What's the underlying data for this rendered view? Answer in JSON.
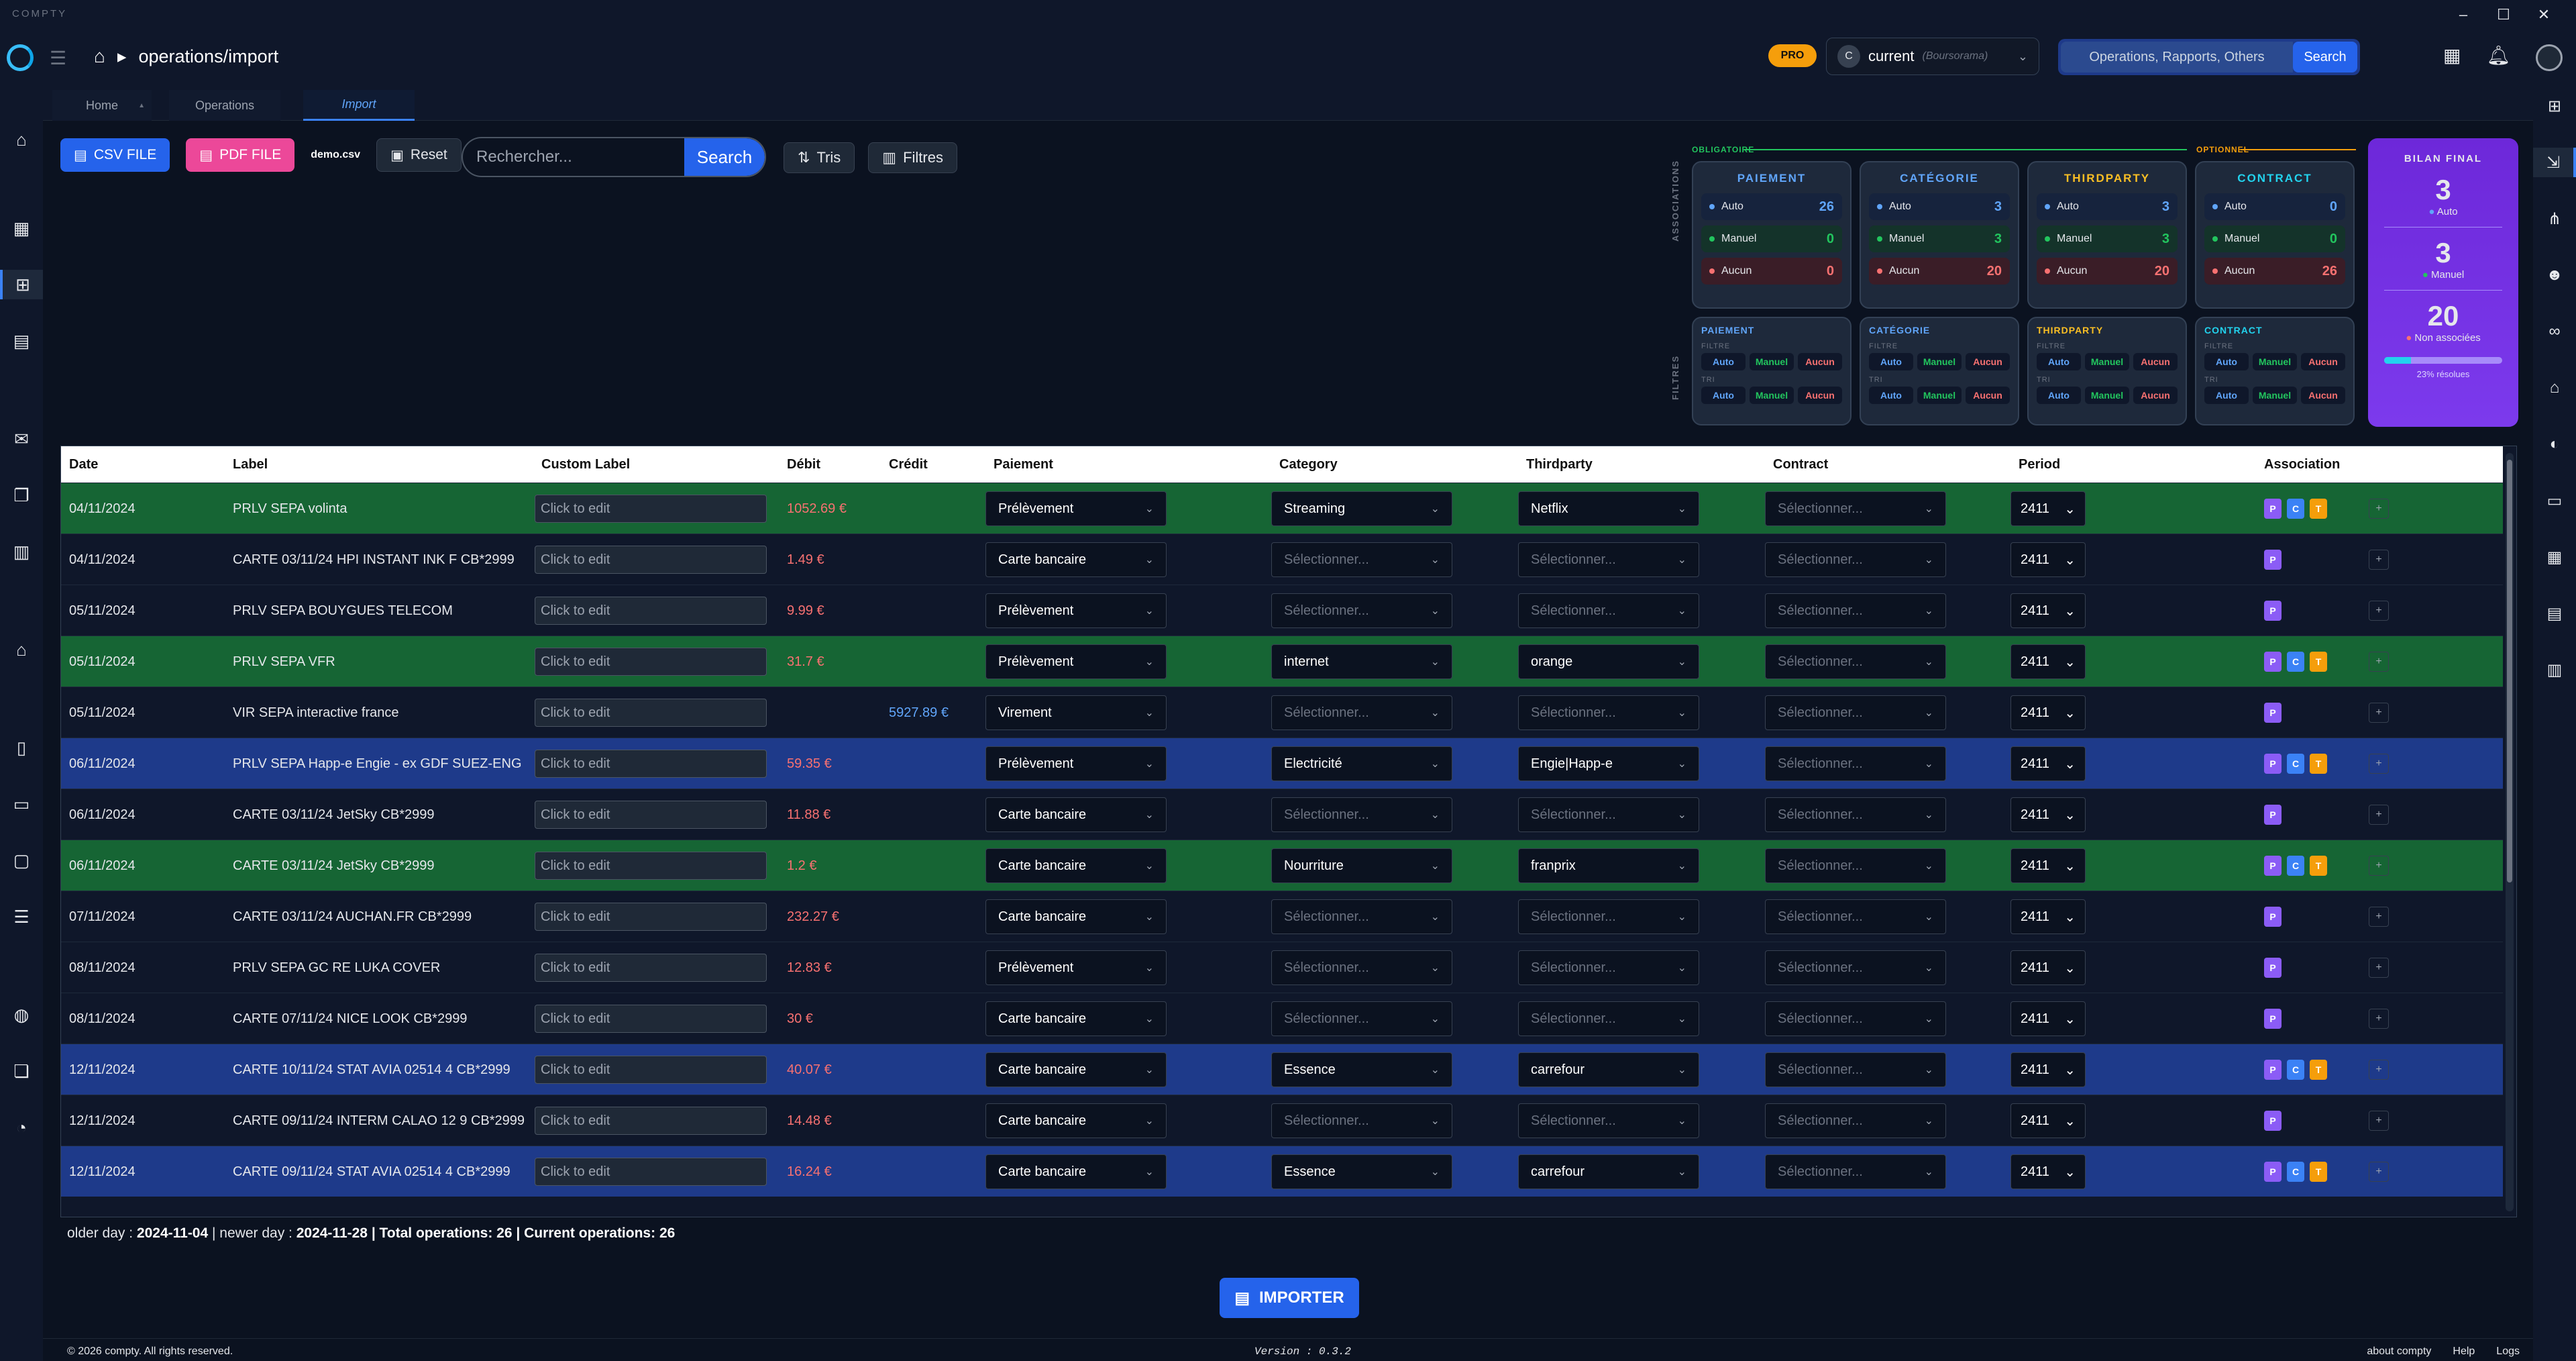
{
  "app_name": "COMPTY",
  "breadcrumb": "operations/import",
  "pro_badge": "PRO",
  "account": {
    "initial": "C",
    "name": "current",
    "bank": "(Boursorama)"
  },
  "global_search": {
    "placeholder": "Operations, Rapports, Others",
    "button": "Search"
  },
  "tabs": [
    "Home",
    "Operations",
    "Import"
  ],
  "toolbar": {
    "csv": "CSV FILE",
    "pdf": "PDF FILE",
    "filename": "demo.csv",
    "reset": "Reset",
    "search_placeholder": "Rechercher...",
    "search_button": "Search",
    "sort": "Tris",
    "filters": "Filtres"
  },
  "panel": {
    "associations_label": "ASSOCIATIONS",
    "filtres_label": "FILTRES",
    "obligatoire": "OBLIGATOIRE",
    "optionnel": "OPTIONNEL",
    "row_labels": [
      "Auto",
      "Manuel",
      "Aucun"
    ],
    "filter_labels": [
      "FILTRE",
      "TRI"
    ],
    "cards": [
      {
        "title": "PAIEMENT",
        "color": "#60a5fa",
        "auto": "26",
        "manuel": "0",
        "aucun": "0",
        "ftitle": "PAIEMENT"
      },
      {
        "title": "CATÉGORIE",
        "color": "#60a5fa",
        "auto": "3",
        "manuel": "3",
        "aucun": "20",
        "ftitle": "CATÉGORIE"
      },
      {
        "title": "THIRDPARTY",
        "color": "#fbbf24",
        "auto": "3",
        "manuel": "3",
        "aucun": "20",
        "ftitle": "THIRDPARTY"
      },
      {
        "title": "CONTRACT",
        "color": "#22d3ee",
        "auto": "0",
        "manuel": "0",
        "aucun": "26",
        "ftitle": "CONTRACT"
      }
    ]
  },
  "bilan": {
    "title": "BILAN FINAL",
    "auto": "3",
    "auto_label": "Auto",
    "manuel": "3",
    "manuel_label": "Manuel",
    "none": "20",
    "none_label": "Non associées",
    "resolved_fraction": 0.23,
    "resolved_label": "23% résolues"
  },
  "columns": [
    "Date",
    "Label",
    "Custom Label",
    "Débit",
    "Crédit",
    "Paiement",
    "Category",
    "Thirdparty",
    "Contract",
    "Period",
    "Association"
  ],
  "placeholders": {
    "custom": "Click to edit",
    "select": "Sélectionner..."
  },
  "rows": [
    {
      "date": "04/11/2024",
      "label": "PRLV SEPA volinta",
      "debit": "1052.69 €",
      "credit": "",
      "paiement": "Prélèvement",
      "category": "Streaming",
      "thirdparty": "Netflix",
      "period": "2411",
      "tone": "green",
      "badges": "PCT"
    },
    {
      "date": "04/11/2024",
      "label": "CARTE 03/11/24 HPI INSTANT INK F CB*2999",
      "debit": "1.49 €",
      "credit": "",
      "paiement": "Carte bancaire",
      "category": "",
      "thirdparty": "",
      "period": "2411",
      "tone": "dark",
      "badges": "P"
    },
    {
      "date": "05/11/2024",
      "label": "PRLV SEPA BOUYGUES TELECOM",
      "debit": "9.99 €",
      "credit": "",
      "paiement": "Prélèvement",
      "category": "",
      "thirdparty": "",
      "period": "2411",
      "tone": "dark",
      "badges": "P"
    },
    {
      "date": "05/11/2024",
      "label": "PRLV SEPA VFR",
      "debit": "31.7 €",
      "credit": "",
      "paiement": "Prélèvement",
      "category": "internet",
      "thirdparty": "orange",
      "period": "2411",
      "tone": "green",
      "badges": "PCT"
    },
    {
      "date": "05/11/2024",
      "label": "VIR SEPA interactive france",
      "debit": "",
      "credit": "5927.89 €",
      "paiement": "Virement",
      "category": "",
      "thirdparty": "",
      "period": "2411",
      "tone": "dark",
      "badges": "P"
    },
    {
      "date": "06/11/2024",
      "label": "PRLV SEPA Happ-e Engie - ex GDF SUEZ-ENG",
      "debit": "59.35 €",
      "credit": "",
      "paiement": "Prélèvement",
      "category": "Electricité",
      "thirdparty": "Engie|Happ-e",
      "period": "2411",
      "tone": "blue",
      "badges": "PCT"
    },
    {
      "date": "06/11/2024",
      "label": "CARTE 03/11/24 JetSky CB*2999",
      "debit": "11.88 €",
      "credit": "",
      "paiement": "Carte bancaire",
      "category": "",
      "thirdparty": "",
      "period": "2411",
      "tone": "dark",
      "badges": "P"
    },
    {
      "date": "06/11/2024",
      "label": "CARTE 03/11/24 JetSky CB*2999",
      "debit": "1.2 €",
      "credit": "",
      "paiement": "Carte bancaire",
      "category": "Nourriture",
      "thirdparty": "franprix",
      "period": "2411",
      "tone": "green",
      "badges": "PCT"
    },
    {
      "date": "07/11/2024",
      "label": "CARTE 03/11/24 AUCHAN.FR CB*2999",
      "debit": "232.27 €",
      "credit": "",
      "paiement": "Carte bancaire",
      "category": "",
      "thirdparty": "",
      "period": "2411",
      "tone": "dark",
      "badges": "P"
    },
    {
      "date": "08/11/2024",
      "label": "PRLV SEPA GC RE LUKA COVER",
      "debit": "12.83 €",
      "credit": "",
      "paiement": "Prélèvement",
      "category": "",
      "thirdparty": "",
      "period": "2411",
      "tone": "dark",
      "badges": "P"
    },
    {
      "date": "08/11/2024",
      "label": "CARTE 07/11/24 NICE LOOK CB*2999",
      "debit": "30 €",
      "credit": "",
      "paiement": "Carte bancaire",
      "category": "",
      "thirdparty": "",
      "period": "2411",
      "tone": "dark",
      "badges": "P"
    },
    {
      "date": "12/11/2024",
      "label": "CARTE 10/11/24 STAT AVIA 02514 4 CB*2999",
      "debit": "40.07 €",
      "credit": "",
      "paiement": "Carte bancaire",
      "category": "Essence",
      "thirdparty": "carrefour",
      "period": "2411",
      "tone": "blue",
      "badges": "PCT"
    },
    {
      "date": "12/11/2024",
      "label": "CARTE 09/11/24 INTERM CALAO 12 9 CB*2999",
      "debit": "14.48 €",
      "credit": "",
      "paiement": "Carte bancaire",
      "category": "",
      "thirdparty": "",
      "period": "2411",
      "tone": "dark",
      "badges": "P"
    },
    {
      "date": "12/11/2024",
      "label": "CARTE 09/11/24 STAT AVIA 02514 4 CB*2999",
      "debit": "16.24 €",
      "credit": "",
      "paiement": "Carte bancaire",
      "category": "Essence",
      "thirdparty": "carrefour",
      "period": "2411",
      "tone": "blue",
      "badges": "PCT"
    }
  ],
  "summary": {
    "older_label": "older day :",
    "older": "2024-11-04",
    "newer_label": "| newer day :",
    "newer": "2024-11-28",
    "total_label": "| Total operations:",
    "total": "26",
    "current_label": "| Current operations:",
    "current": "26"
  },
  "import_button": "IMPORTER",
  "footer": {
    "copyright": "© 2026 compty. All rights reserved.",
    "version": "Version : 0.3.2",
    "links": [
      "about compty",
      "Help",
      "Logs"
    ]
  },
  "colors": {
    "green_row": "#166534",
    "blue_row": "#1e3a8a",
    "dark_row": "#0f172a",
    "accent": "#2563eb",
    "pdf": "#ec4899",
    "purple": "#7c3aed"
  }
}
